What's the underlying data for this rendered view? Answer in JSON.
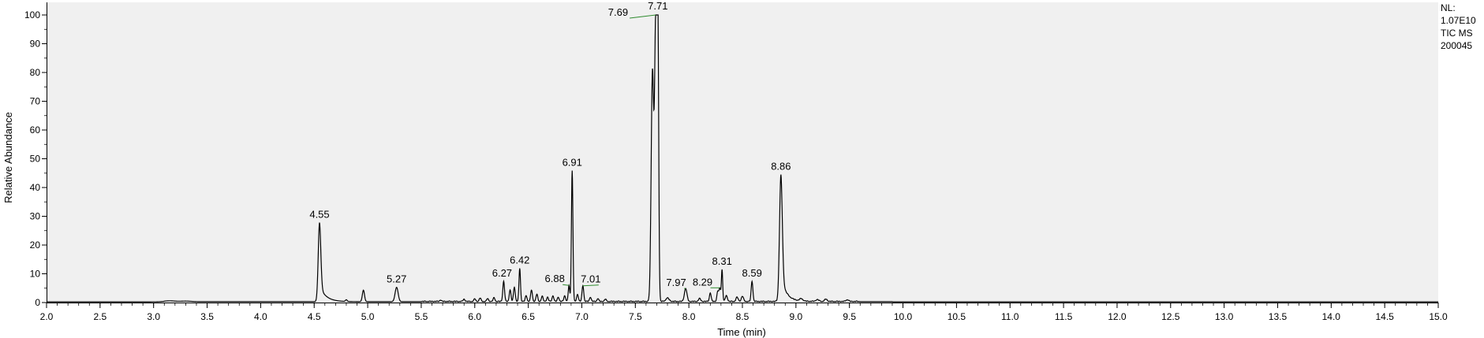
{
  "chart_data": {
    "type": "line",
    "xlabel": "Time (min)",
    "ylabel": "Relative Abundance",
    "xlim": [
      2.0,
      15.0
    ],
    "ylim": [
      0,
      100
    ],
    "xticks": [
      "2.0",
      "2.5",
      "3.0",
      "3.5",
      "4.0",
      "4.5",
      "5.0",
      "5.5",
      "6.0",
      "6.5",
      "7.0",
      "7.5",
      "8.0",
      "8.5",
      "9.0",
      "9.5",
      "10.0",
      "10.5",
      "11.0",
      "11.5",
      "12.0",
      "12.5",
      "13.0",
      "13.5",
      "14.0",
      "14.5",
      "15.0"
    ],
    "yticks": [
      "0",
      "10",
      "20",
      "30",
      "40",
      "50",
      "60",
      "70",
      "80",
      "90",
      "100"
    ],
    "grid": false,
    "plot_background": "#f0f0f0",
    "line_color": "#000000",
    "label_leader_color": "#2e8b2e",
    "baseline": 0.3,
    "peaks": [
      {
        "rt": 3.15,
        "height": 0.3,
        "width": 0.05
      },
      {
        "rt": 3.3,
        "height": 0.2,
        "width": 0.05
      },
      {
        "rt": 4.55,
        "height": 27.5,
        "width": 0.012,
        "tail": 0.06,
        "label": "4.55"
      },
      {
        "rt": 4.8,
        "height": 0.6,
        "width": 0.008
      },
      {
        "rt": 4.96,
        "height": 4.0,
        "width": 0.01
      },
      {
        "rt": 5.27,
        "height": 5.0,
        "width": 0.014,
        "label": "5.27"
      },
      {
        "rt": 5.68,
        "height": 0.5,
        "width": 0.008
      },
      {
        "rt": 5.9,
        "height": 0.8,
        "width": 0.008
      },
      {
        "rt": 6.0,
        "height": 0.9,
        "width": 0.008
      },
      {
        "rt": 6.05,
        "height": 1.2,
        "width": 0.008
      },
      {
        "rt": 6.12,
        "height": 1.0,
        "width": 0.008
      },
      {
        "rt": 6.18,
        "height": 1.3,
        "width": 0.008
      },
      {
        "rt": 6.27,
        "height": 7.0,
        "width": 0.008,
        "label": "6.27"
      },
      {
        "rt": 6.33,
        "height": 4.0,
        "width": 0.008
      },
      {
        "rt": 6.37,
        "height": 5.0,
        "width": 0.008
      },
      {
        "rt": 6.42,
        "height": 11.5,
        "width": 0.007,
        "label": "6.42"
      },
      {
        "rt": 6.48,
        "height": 2.0,
        "width": 0.008
      },
      {
        "rt": 6.53,
        "height": 4.0,
        "width": 0.008
      },
      {
        "rt": 6.58,
        "height": 2.5,
        "width": 0.008
      },
      {
        "rt": 6.63,
        "height": 1.8,
        "width": 0.008
      },
      {
        "rt": 6.68,
        "height": 1.5,
        "width": 0.008
      },
      {
        "rt": 6.73,
        "height": 2.0,
        "width": 0.008
      },
      {
        "rt": 6.78,
        "height": 1.5,
        "width": 0.008
      },
      {
        "rt": 6.84,
        "height": 2.0,
        "width": 0.008
      },
      {
        "rt": 6.88,
        "height": 5.5,
        "width": 0.007,
        "label": "6.88",
        "leader": true
      },
      {
        "rt": 6.91,
        "height": 45.5,
        "width": 0.007,
        "label": "6.91"
      },
      {
        "rt": 6.96,
        "height": 2.5,
        "width": 0.008
      },
      {
        "rt": 7.01,
        "height": 5.5,
        "width": 0.008,
        "label": "7.01",
        "leader": true
      },
      {
        "rt": 7.08,
        "height": 1.5,
        "width": 0.008
      },
      {
        "rt": 7.15,
        "height": 1.0,
        "width": 0.008
      },
      {
        "rt": 7.22,
        "height": 0.8,
        "width": 0.008
      },
      {
        "rt": 7.66,
        "height": 80.0,
        "width": 0.012
      },
      {
        "rt": 7.69,
        "height": 93.0,
        "width": 0.01,
        "label": "7.69",
        "leader": true
      },
      {
        "rt": 7.71,
        "height": 99.0,
        "width": 0.008,
        "label": "7.71"
      },
      {
        "rt": 7.8,
        "height": 1.2,
        "width": 0.015
      },
      {
        "rt": 7.97,
        "height": 4.5,
        "width": 0.012,
        "label": "7.97",
        "leader": true
      },
      {
        "rt": 8.1,
        "height": 1.0,
        "width": 0.01
      },
      {
        "rt": 8.2,
        "height": 3.0,
        "width": 0.008
      },
      {
        "rt": 8.27,
        "height": 3.5,
        "width": 0.008
      },
      {
        "rt": 8.29,
        "height": 4.5,
        "width": 0.008,
        "label": "8.29",
        "leader": true
      },
      {
        "rt": 8.31,
        "height": 11.0,
        "width": 0.006,
        "label": "8.31"
      },
      {
        "rt": 8.35,
        "height": 2.0,
        "width": 0.01
      },
      {
        "rt": 8.45,
        "height": 1.5,
        "width": 0.01
      },
      {
        "rt": 8.5,
        "height": 1.8,
        "width": 0.01
      },
      {
        "rt": 8.59,
        "height": 7.0,
        "width": 0.008,
        "label": "8.59"
      },
      {
        "rt": 8.86,
        "height": 44.0,
        "width": 0.013,
        "tail": 0.05,
        "label": "8.86"
      },
      {
        "rt": 9.05,
        "height": 0.8,
        "width": 0.015
      },
      {
        "rt": 9.2,
        "height": 0.6,
        "width": 0.015
      },
      {
        "rt": 9.28,
        "height": 0.8,
        "width": 0.012
      },
      {
        "rt": 9.48,
        "height": 0.6,
        "width": 0.012
      }
    ]
  },
  "info": {
    "nl_label": "NL:",
    "nl_value": "1.07E10",
    "scan_filter": "TIC  MS",
    "file_id": "200045"
  }
}
